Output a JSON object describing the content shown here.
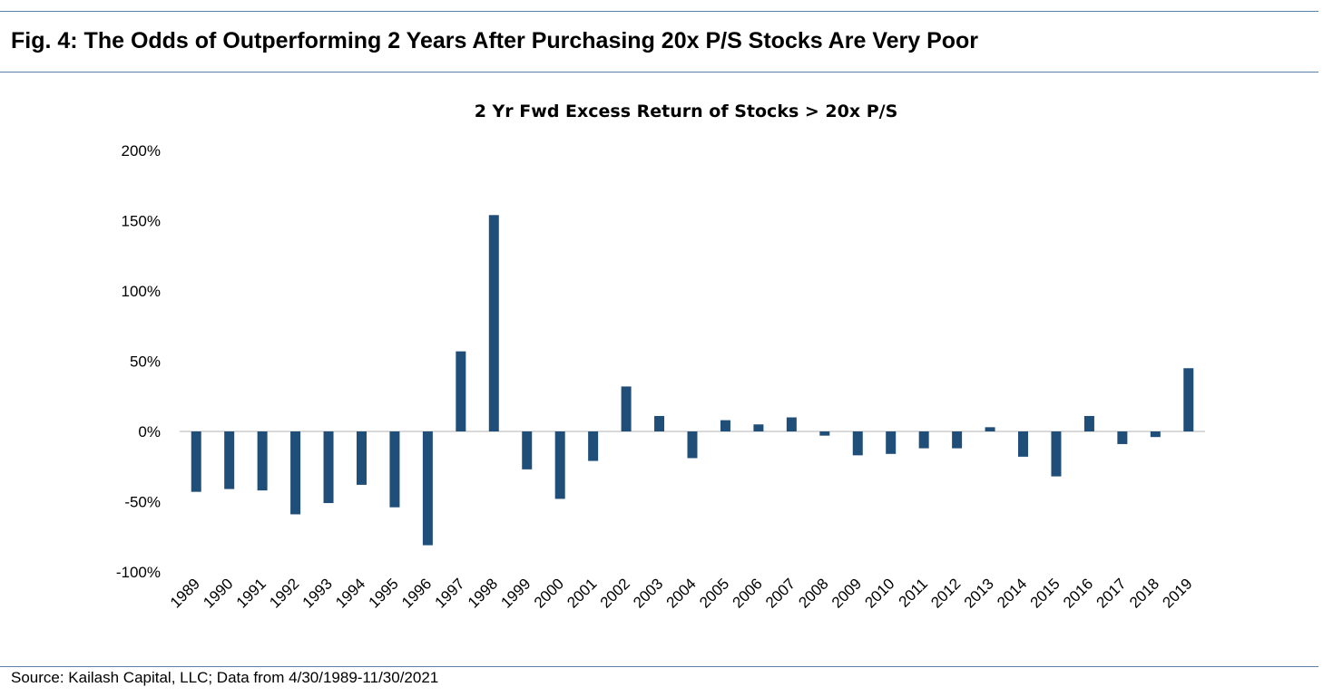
{
  "figure_title": "Fig. 4: The Odds of Outperforming 2 Years After Purchasing 20x P/S Stocks Are Very Poor",
  "source": "Source: Kailash Capital, LLC; Data from 4/30/1989-11/30/2021",
  "colors": {
    "bar": "#1f4e79",
    "rule": "#5b7fa6",
    "zero_line": "#d9d9d9"
  },
  "chart_data": {
    "type": "bar",
    "title": "2 Yr Fwd Excess Return of Stocks > 20x P/S",
    "xlabel": "",
    "ylabel": "",
    "ylim": [
      -100,
      200
    ],
    "yticks": [
      -100,
      -50,
      0,
      50,
      100,
      150,
      200
    ],
    "ytick_labels": [
      "-100%",
      "-50%",
      "0%",
      "50%",
      "100%",
      "150%",
      "200%"
    ],
    "grid": false,
    "categories": [
      "1989",
      "1990",
      "1991",
      "1992",
      "1993",
      "1994",
      "1995",
      "1996",
      "1997",
      "1998",
      "1999",
      "2000",
      "2001",
      "2002",
      "2003",
      "2004",
      "2005",
      "2006",
      "2007",
      "2008",
      "2009",
      "2010",
      "2011",
      "2012",
      "2013",
      "2014",
      "2015",
      "2016",
      "2017",
      "2018",
      "2019"
    ],
    "values": [
      -43,
      -41,
      -42,
      -59,
      -51,
      -38,
      -54,
      -81,
      57,
      154,
      -27,
      -48,
      -21,
      32,
      11,
      -19,
      8,
      5,
      10,
      -3,
      -17,
      -16,
      -12,
      -12,
      3,
      -18,
      -32,
      11,
      -9,
      -4,
      45
    ]
  }
}
